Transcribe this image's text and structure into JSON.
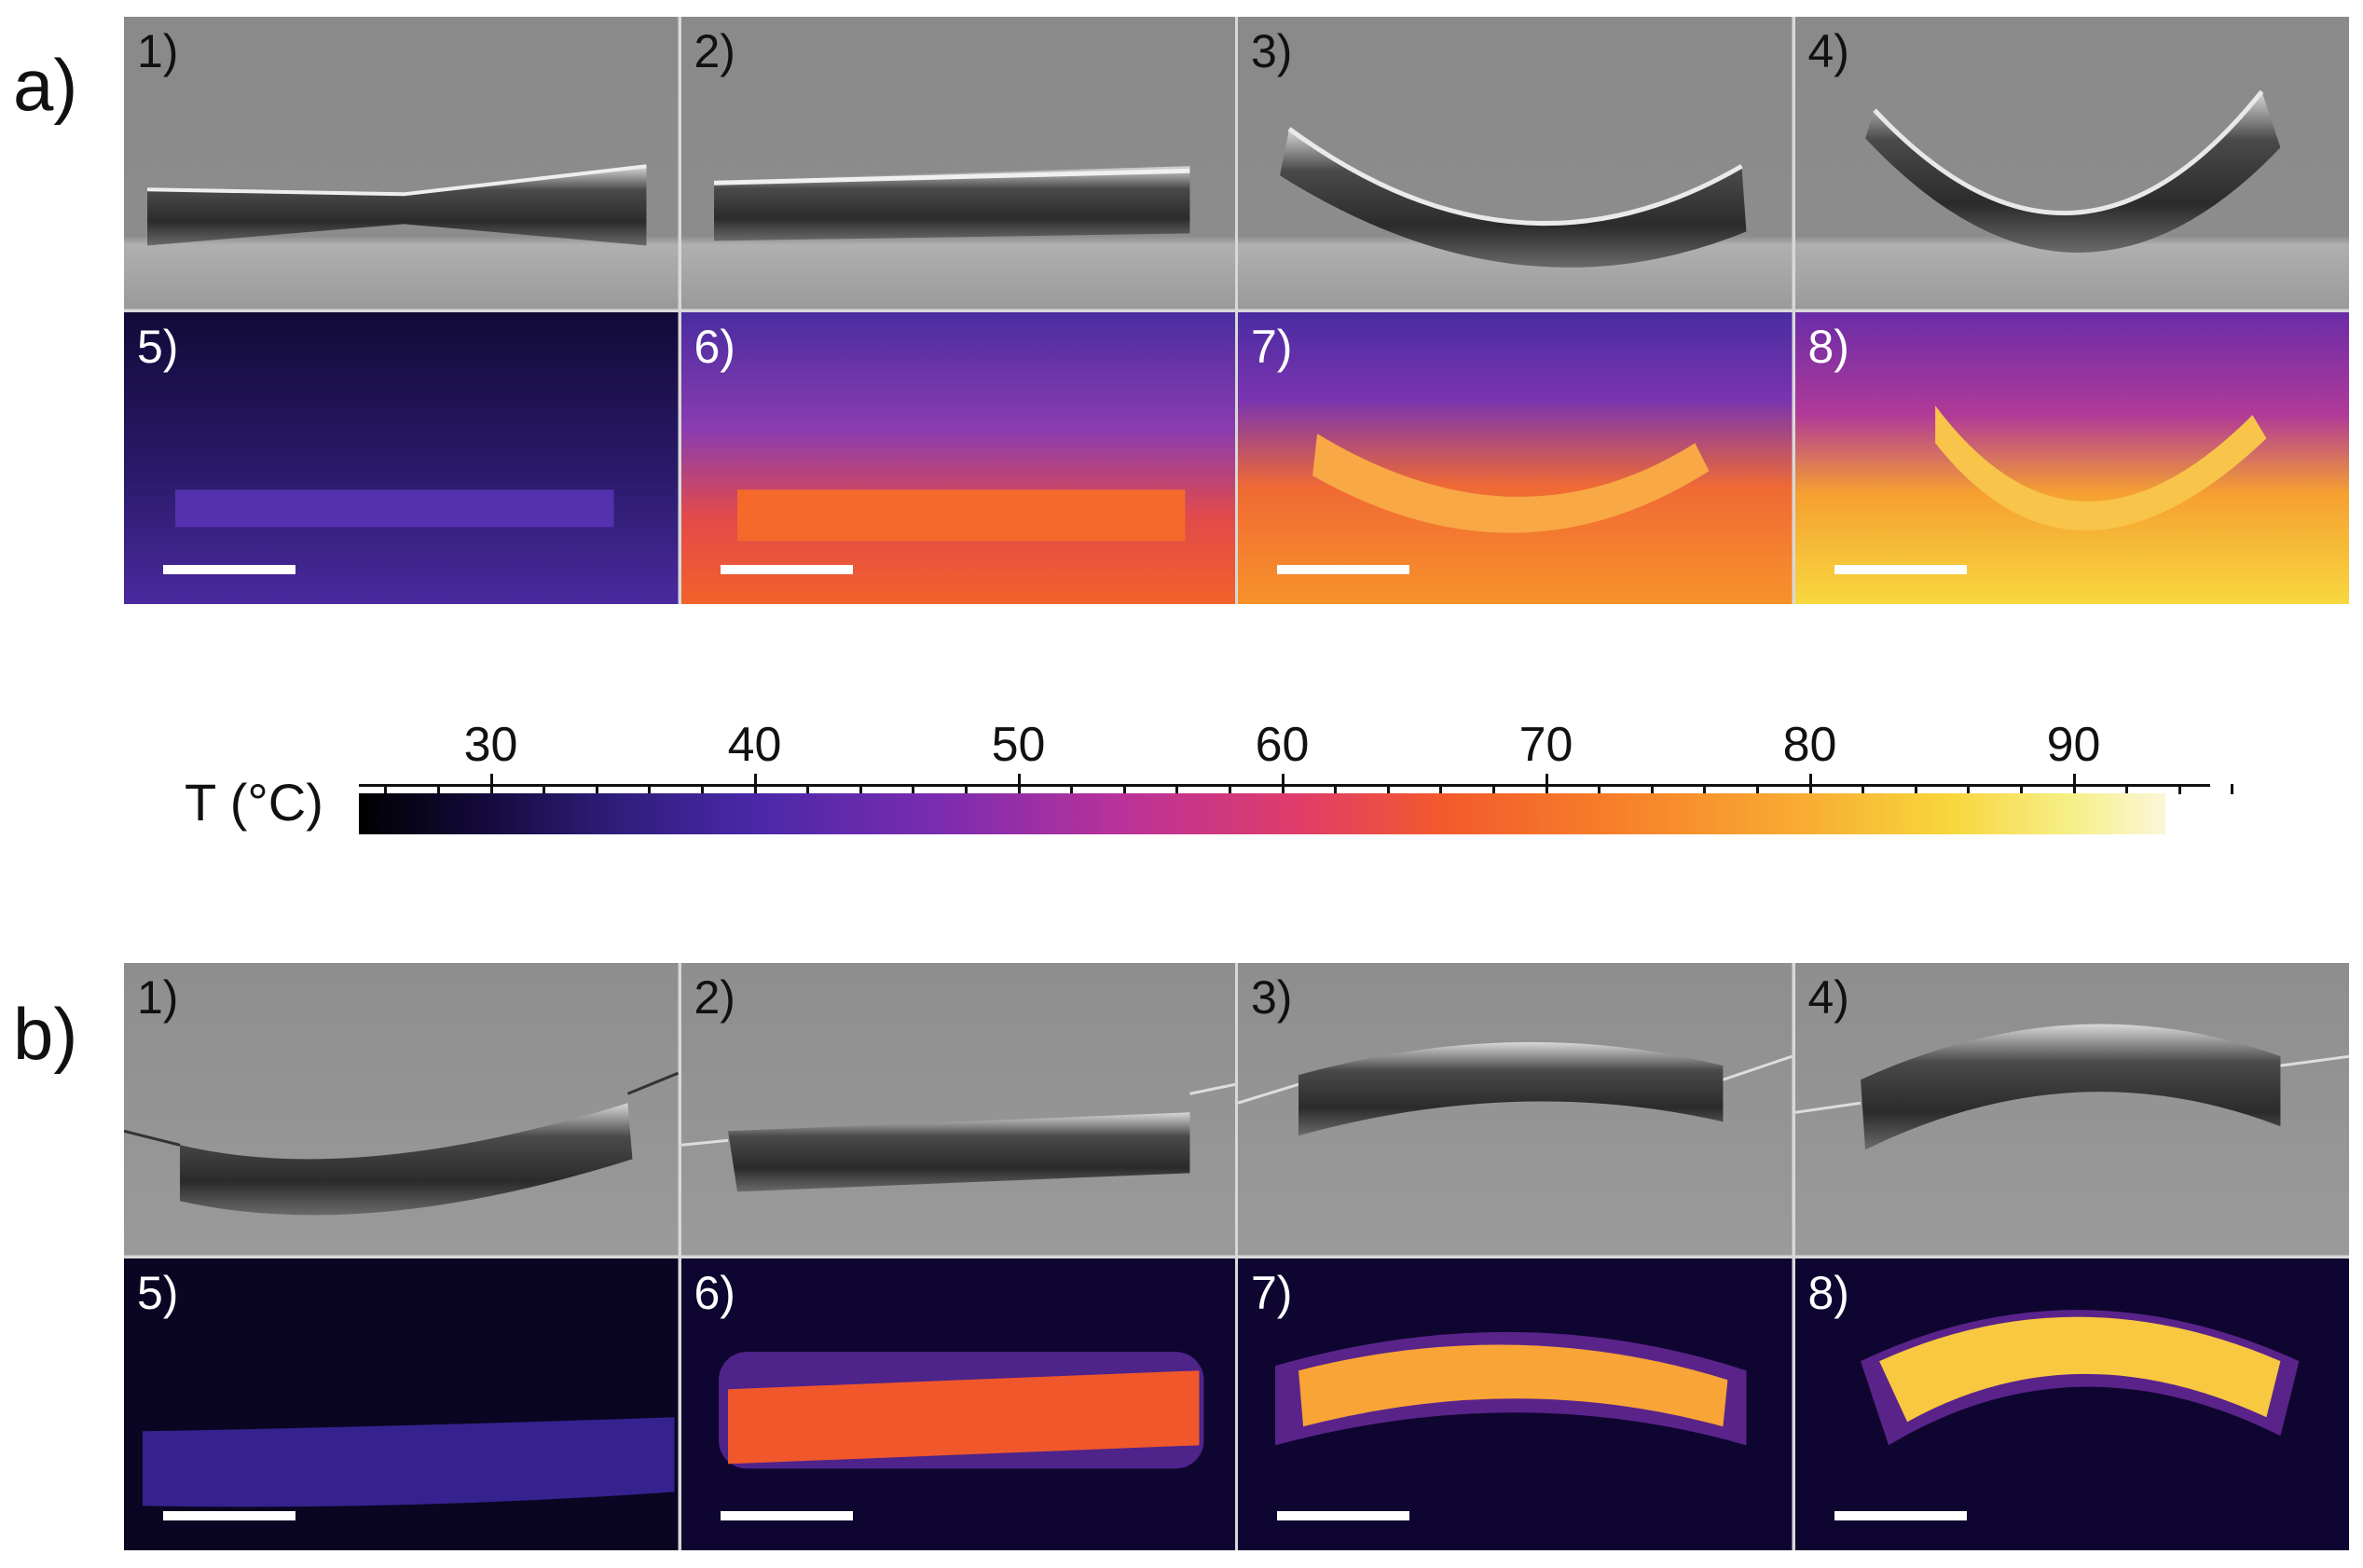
{
  "figure": {
    "section_a_label": "a)",
    "section_b_label": "b)",
    "colorbar": {
      "title": "T (°C)",
      "ticks": [
        "30",
        "40",
        "50",
        "60",
        "70",
        "80",
        "90"
      ],
      "range": [
        25,
        94
      ]
    },
    "panels_a": [
      {
        "num": "1)",
        "kind": "photo"
      },
      {
        "num": "2)",
        "kind": "photo"
      },
      {
        "num": "3)",
        "kind": "photo"
      },
      {
        "num": "4)",
        "kind": "photo"
      },
      {
        "num": "5)",
        "kind": "thermal"
      },
      {
        "num": "6)",
        "kind": "thermal"
      },
      {
        "num": "7)",
        "kind": "thermal"
      },
      {
        "num": "8)",
        "kind": "thermal"
      }
    ],
    "panels_b": [
      {
        "num": "1)",
        "kind": "photo"
      },
      {
        "num": "2)",
        "kind": "photo"
      },
      {
        "num": "3)",
        "kind": "photo"
      },
      {
        "num": "4)",
        "kind": "photo"
      },
      {
        "num": "5)",
        "kind": "thermal"
      },
      {
        "num": "6)",
        "kind": "thermal"
      },
      {
        "num": "7)",
        "kind": "thermal"
      },
      {
        "num": "8)",
        "kind": "thermal"
      }
    ]
  }
}
